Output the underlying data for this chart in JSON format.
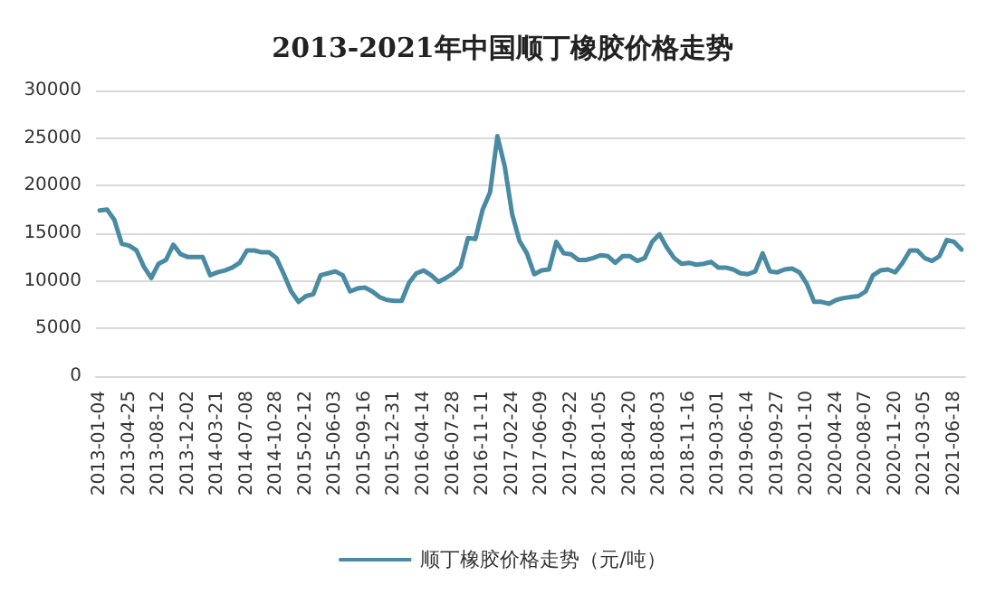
{
  "chart_data": {
    "type": "line",
    "title": "2013-2021年中国顺丁橡胶价格走势",
    "categories": [
      "2013-01-04",
      null,
      null,
      null,
      "2013-04-25",
      null,
      null,
      null,
      "2013-08-12",
      null,
      null,
      null,
      "2013-12-02",
      null,
      null,
      null,
      "2014-03-21",
      null,
      null,
      null,
      "2014-07-08",
      null,
      null,
      null,
      "2014-10-28",
      null,
      null,
      null,
      "2015-02-12",
      null,
      null,
      null,
      "2015-06-03",
      null,
      null,
      null,
      "2015-09-16",
      null,
      null,
      null,
      "2015-12-31",
      null,
      null,
      null,
      "2016-04-14",
      null,
      null,
      null,
      "2016-07-28",
      null,
      null,
      null,
      "2016-11-11",
      null,
      null,
      null,
      "2017-02-24",
      null,
      null,
      null,
      "2017-06-09",
      null,
      null,
      null,
      "2017-09-22",
      null,
      null,
      null,
      "2018-01-05",
      null,
      null,
      null,
      "2018-04-20",
      null,
      null,
      null,
      "2018-08-03",
      null,
      null,
      null,
      "2018-11-16",
      null,
      null,
      null,
      "2019-03-01",
      null,
      null,
      null,
      "2019-06-14",
      null,
      null,
      null,
      "2019-09-27",
      null,
      null,
      null,
      "2020-01-10",
      null,
      null,
      null,
      "2020-04-24",
      null,
      null,
      null,
      "2020-08-07",
      null,
      null,
      null,
      "2020-11-20",
      null,
      null,
      null,
      "2021-03-05",
      null,
      null,
      null,
      "2021-06-18",
      null
    ],
    "series": [
      {
        "name": "顺丁橡胶价格走势（元/吨）",
        "color": "#4a8ba3",
        "values": [
          17400,
          17500,
          16400,
          13900,
          13700,
          13200,
          11500,
          10300,
          11800,
          12200,
          13800,
          12800,
          12500,
          12500,
          12500,
          10600,
          10900,
          11100,
          11400,
          11900,
          13200,
          13200,
          13000,
          13000,
          12400,
          10700,
          8900,
          7800,
          8400,
          8600,
          10600,
          10800,
          11000,
          10600,
          8900,
          9200,
          9300,
          8900,
          8300,
          8000,
          7900,
          7900,
          9800,
          10800,
          11100,
          10600,
          9900,
          10300,
          10800,
          11500,
          14500,
          14400,
          17500,
          19300,
          25200,
          22000,
          17000,
          14200,
          12900,
          10700,
          11100,
          11200,
          14100,
          12900,
          12800,
          12200,
          12200,
          12400,
          12700,
          12600,
          11900,
          12600,
          12600,
          12100,
          12400,
          14100,
          14900,
          13500,
          12400,
          11800,
          11900,
          11700,
          11800,
          12000,
          11400,
          11400,
          11200,
          10800,
          10700,
          11000,
          12900,
          11000,
          10900,
          11200,
          11300,
          10900,
          9700,
          7800,
          7800,
          7600,
          8000,
          8200,
          8300,
          8400,
          8900,
          10600,
          11100,
          11200,
          10900,
          11900,
          13200,
          13200,
          12400,
          12100,
          12600,
          14300,
          14100,
          13300
        ]
      }
    ],
    "ylim": [
      0,
      30000
    ],
    "yticks": [
      0,
      5000,
      10000,
      15000,
      20000,
      25000,
      30000
    ],
    "grid": "y",
    "legend": "bottom",
    "marker": "none",
    "line_style": "solid"
  }
}
